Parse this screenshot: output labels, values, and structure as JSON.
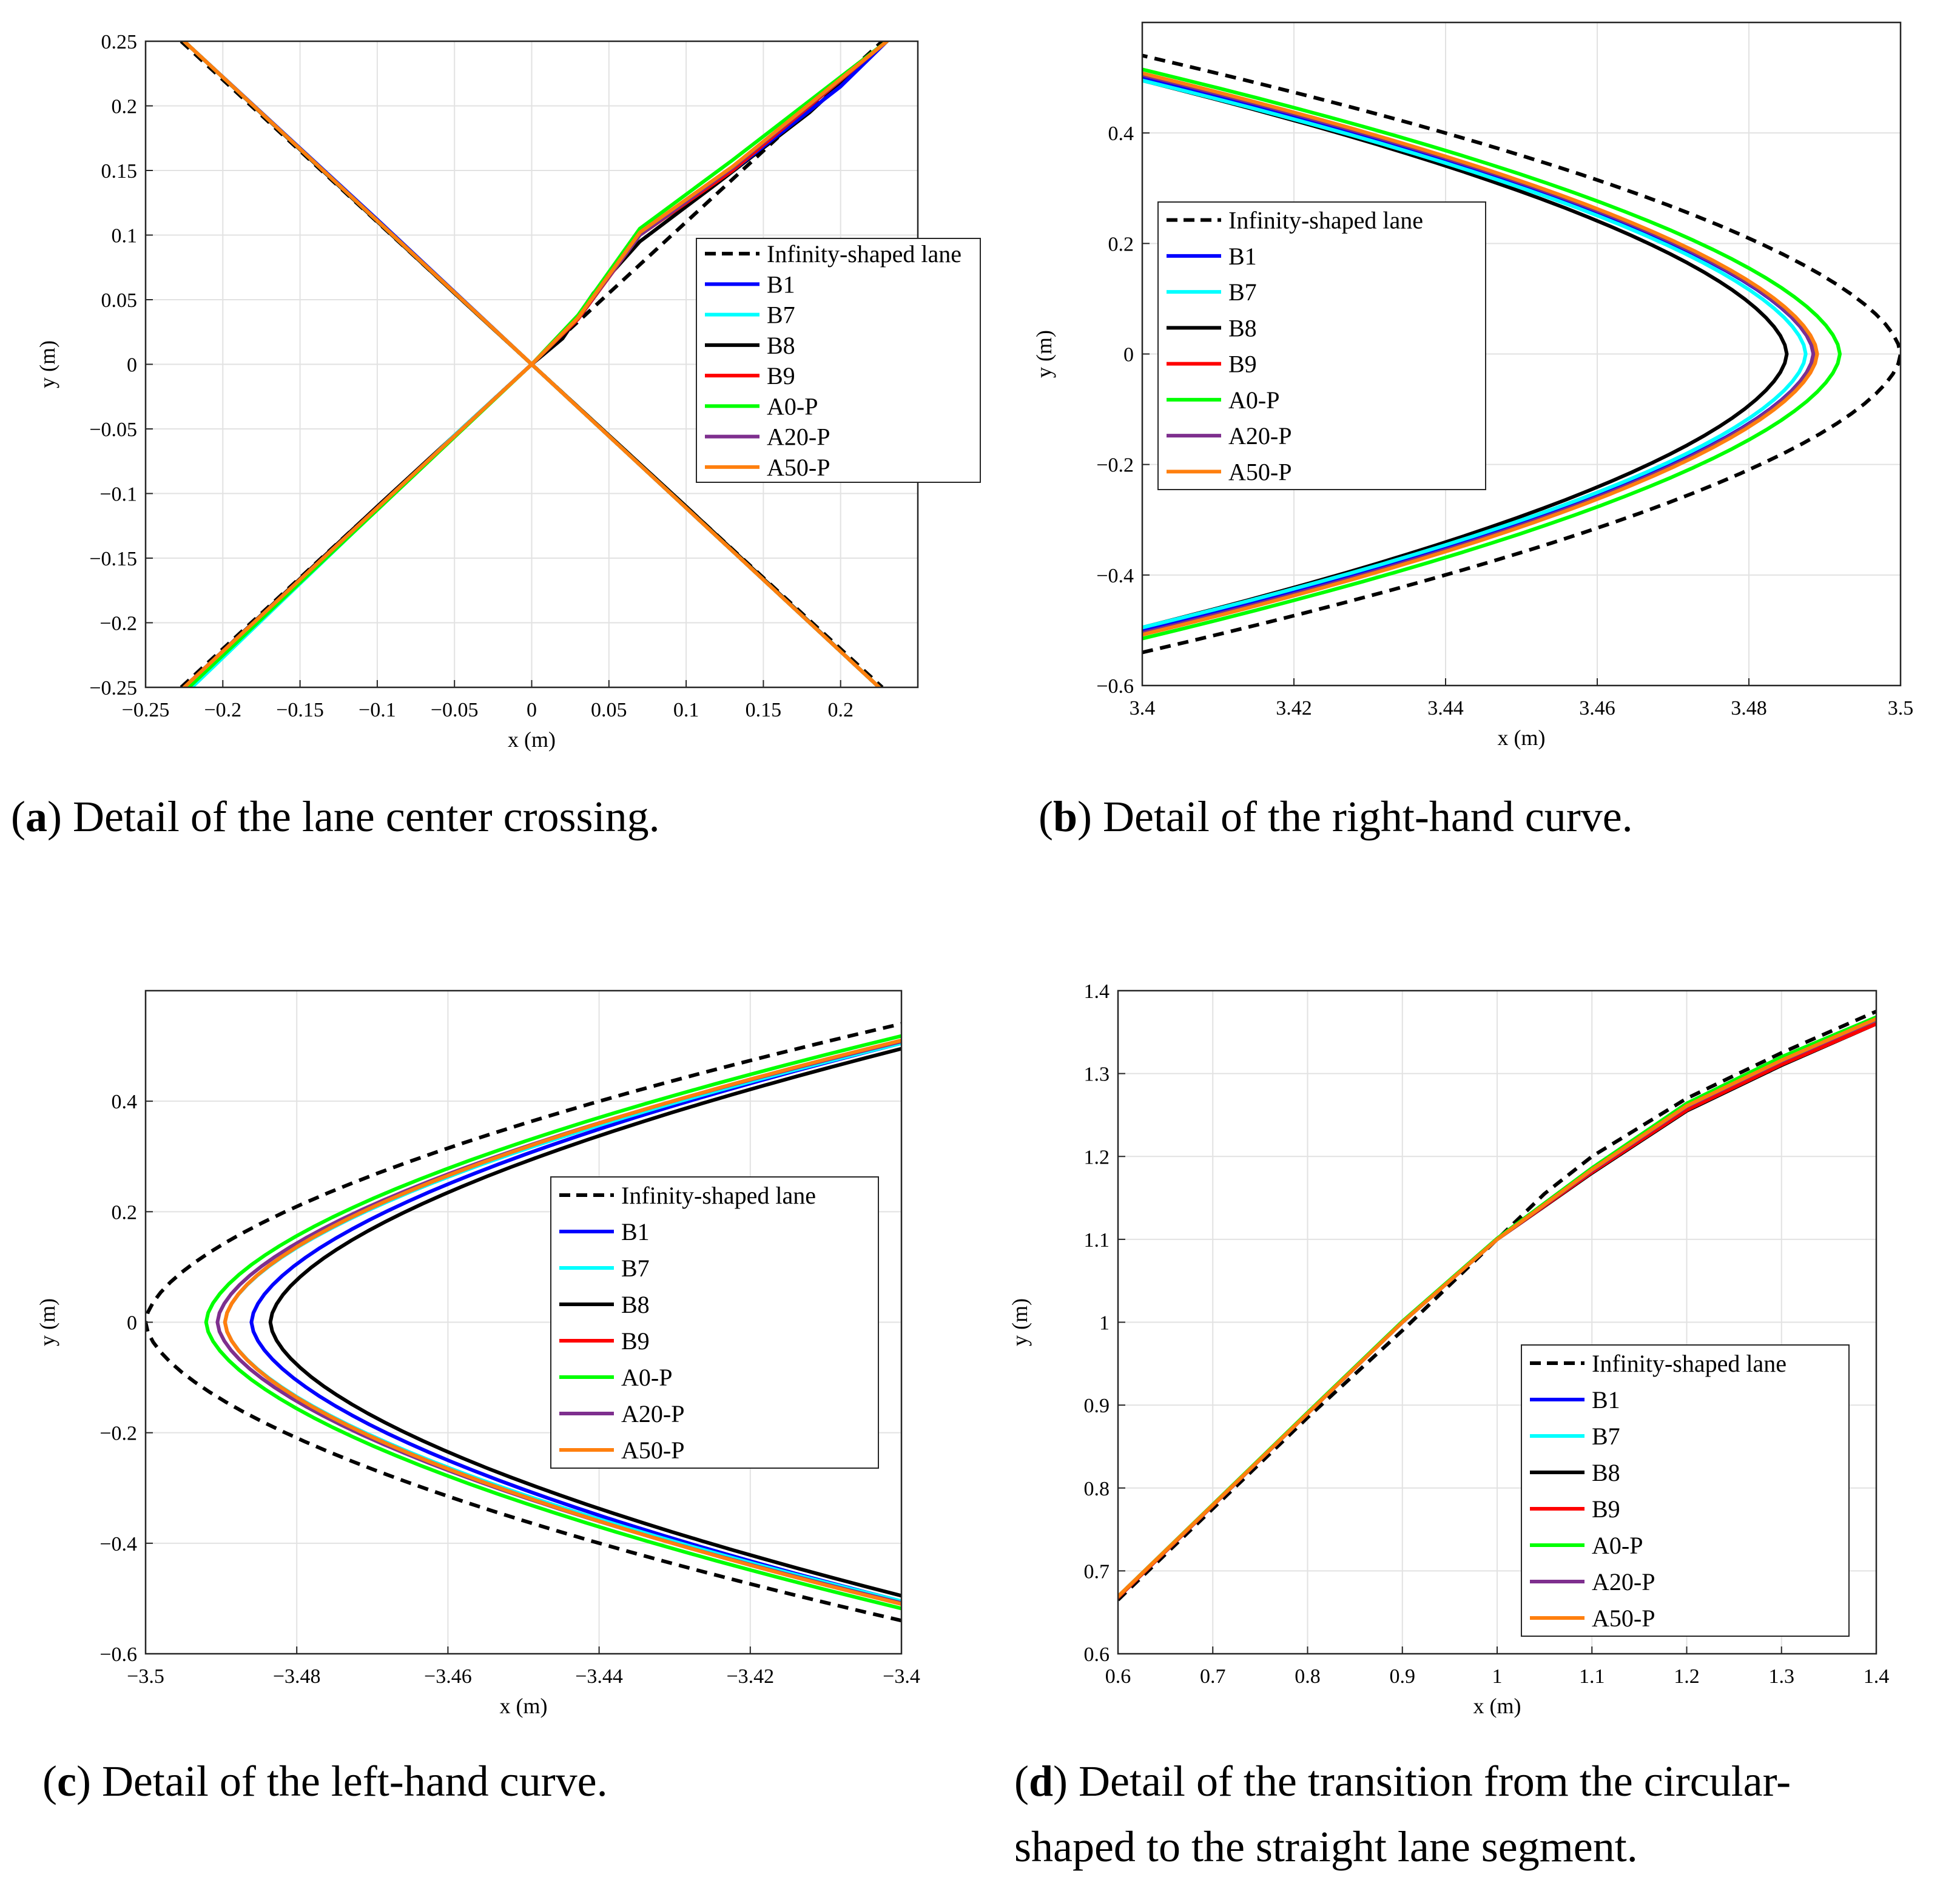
{
  "figure": {
    "series": [
      {
        "key": "lane",
        "name": "Infinity-shaped lane",
        "color": "#000000",
        "dashed": true
      },
      {
        "key": "B1",
        "name": "B1",
        "color": "#0000ff",
        "dashed": false
      },
      {
        "key": "B7",
        "name": "B7",
        "color": "#00ffff",
        "dashed": false
      },
      {
        "key": "B8",
        "name": "B8",
        "color": "#000000",
        "dashed": false
      },
      {
        "key": "B9",
        "name": "B9",
        "color": "#ff0000",
        "dashed": false
      },
      {
        "key": "A0P",
        "name": "A0-P",
        "color": "#00ff00",
        "dashed": false
      },
      {
        "key": "A20P",
        "name": "A20-P",
        "color": "#7e2f8e",
        "dashed": false
      },
      {
        "key": "A50P",
        "name": "A50-P",
        "color": "#ff7f0e",
        "dashed": false
      }
    ]
  },
  "chart_data": [
    {
      "id": "a",
      "type": "line",
      "caption_letter": "a",
      "caption_text": "Detail of the lane center crossing.",
      "xlabel": "x (m)",
      "ylabel": "y (m)",
      "xlim": [
        -0.25,
        0.25
      ],
      "ylim": [
        -0.25,
        0.25
      ],
      "xticks": [
        -0.25,
        -0.2,
        -0.15,
        -0.1,
        -0.05,
        0,
        0.05,
        0.1,
        0.15,
        0.2
      ],
      "xtick_labels": [
        "−0.25",
        "−0.2",
        "−0.15",
        "−0.1",
        "−0.05",
        "0",
        "0.05",
        "0.1",
        "0.15",
        "0.2"
      ],
      "yticks": [
        -0.25,
        -0.2,
        -0.15,
        -0.1,
        -0.05,
        0,
        0.05,
        0.1,
        0.15,
        0.2,
        0.25
      ],
      "ytick_labels": [
        "−0.25",
        "−0.2",
        "−0.15",
        "−0.1",
        "−0.05",
        "0",
        "0.05",
        "0.1",
        "0.15",
        "0.2",
        "0.25"
      ],
      "grid": true,
      "legend_position": "upper-right",
      "series": [
        {
          "key": "lane",
          "paths": [
            [
              [
                -0.227,
                0.25
              ],
              [
                0,
                0
              ],
              [
                0.227,
                -0.25
              ]
            ],
            [
              [
                -0.227,
                -0.25
              ],
              [
                0,
                0
              ],
              [
                0.227,
                0.25
              ]
            ]
          ]
        },
        {
          "key": "B8",
          "paths": [
            [
              [
                -0.225,
                0.25
              ],
              [
                -0.14,
                0.155
              ],
              [
                -0.05,
                0.055
              ],
              [
                0,
                0
              ],
              [
                0.1,
                -0.11
              ],
              [
                0.225,
                -0.25
              ]
            ],
            [
              [
                -0.225,
                -0.25
              ],
              [
                -0.1,
                -0.11
              ],
              [
                0,
                0
              ],
              [
                0.02,
                0.02
              ],
              [
                0.04,
                0.055
              ],
              [
                0.07,
                0.095
              ],
              [
                0.12,
                0.14
              ],
              [
                0.18,
                0.195
              ],
              [
                0.23,
                0.25
              ]
            ]
          ]
        },
        {
          "key": "B1",
          "paths": [
            [
              [
                -0.225,
                0.25
              ],
              [
                -0.1,
                0.112
              ],
              [
                0,
                0
              ],
              [
                0.225,
                -0.25
              ]
            ],
            [
              [
                -0.225,
                -0.25
              ],
              [
                0,
                0
              ],
              [
                0.03,
                0.035
              ],
              [
                0.07,
                0.1
              ],
              [
                0.13,
                0.15
              ],
              [
                0.2,
                0.215
              ],
              [
                0.23,
                0.25
              ]
            ]
          ]
        },
        {
          "key": "B7",
          "paths": [
            [
              [
                -0.225,
                0.25
              ],
              [
                0,
                0
              ],
              [
                0.225,
                -0.25
              ]
            ],
            [
              [
                -0.22,
                -0.25
              ],
              [
                -0.05,
                -0.055
              ],
              [
                0,
                0
              ],
              [
                0.03,
                0.035
              ],
              [
                0.07,
                0.1
              ],
              [
                0.13,
                0.15
              ],
              [
                0.23,
                0.25
              ]
            ]
          ]
        },
        {
          "key": "B9",
          "paths": [
            [
              [
                -0.225,
                0.25
              ],
              [
                0,
                0
              ],
              [
                0.225,
                -0.25
              ]
            ],
            [
              [
                -0.225,
                -0.25
              ],
              [
                0,
                0
              ],
              [
                0.03,
                0.035
              ],
              [
                0.07,
                0.1
              ],
              [
                0.13,
                0.15
              ],
              [
                0.23,
                0.25
              ]
            ]
          ]
        },
        {
          "key": "A20P",
          "paths": [
            [
              [
                -0.225,
                0.25
              ],
              [
                0,
                0
              ],
              [
                0.225,
                -0.25
              ]
            ],
            [
              [
                -0.225,
                -0.25
              ],
              [
                0,
                0
              ],
              [
                0.03,
                0.036
              ],
              [
                0.07,
                0.1
              ],
              [
                0.13,
                0.152
              ],
              [
                0.23,
                0.25
              ]
            ]
          ]
        },
        {
          "key": "A0P",
          "paths": [
            [
              [
                -0.225,
                0.25
              ],
              [
                0,
                0
              ],
              [
                0.225,
                -0.25
              ]
            ],
            [
              [
                -0.222,
                -0.25
              ],
              [
                0,
                0
              ],
              [
                0.03,
                0.038
              ],
              [
                0.07,
                0.105
              ],
              [
                0.13,
                0.158
              ],
              [
                0.23,
                0.25
              ]
            ]
          ]
        },
        {
          "key": "A50P",
          "paths": [
            [
              [
                -0.225,
                0.25
              ],
              [
                0,
                0
              ],
              [
                0.225,
                -0.25
              ]
            ],
            [
              [
                -0.225,
                -0.25
              ],
              [
                0,
                0
              ],
              [
                0.03,
                0.036
              ],
              [
                0.07,
                0.102
              ],
              [
                0.13,
                0.153
              ],
              [
                0.23,
                0.25
              ]
            ]
          ]
        }
      ]
    },
    {
      "id": "b",
      "type": "line",
      "caption_letter": "b",
      "caption_text": "Detail of the right-hand curve.",
      "xlabel": "x (m)",
      "ylabel": "y (m)",
      "xlim": [
        3.4,
        3.5
      ],
      "ylim": [
        -0.6,
        0.6
      ],
      "xticks": [
        3.4,
        3.42,
        3.44,
        3.46,
        3.48,
        3.5
      ],
      "xtick_labels": [
        "3.4",
        "3.42",
        "3.44",
        "3.46",
        "3.48",
        "3.5"
      ],
      "yticks": [
        -0.6,
        -0.4,
        -0.2,
        0,
        0.2,
        0.4
      ],
      "ytick_labels": [
        "−0.6",
        "−0.4",
        "−0.2",
        "0",
        "0.2",
        "0.4"
      ],
      "grid": true,
      "legend_position": "middle-left",
      "curve_model": {
        "lane": {
          "tip": 3.5,
          "half": 0.54
        },
        "B1": {
          "tip": 3.4885,
          "half": 0.5
        },
        "B7": {
          "tip": 3.4875,
          "half": 0.495
        },
        "B8": {
          "tip": 3.485,
          "half": 0.495
        },
        "B9": {
          "tip": 3.489,
          "half": 0.505
        },
        "A0P": {
          "tip": 3.492,
          "half": 0.515
        },
        "A20P": {
          "tip": 3.4885,
          "half": 0.505
        },
        "A50P": {
          "tip": 3.489,
          "half": 0.508
        }
      }
    },
    {
      "id": "c",
      "type": "line",
      "caption_letter": "c",
      "caption_text": "Detail of the left-hand curve.",
      "xlabel": "x (m)",
      "ylabel": "y (m)",
      "xlim": [
        -3.5,
        -3.4
      ],
      "ylim": [
        -0.6,
        0.6
      ],
      "xticks": [
        -3.5,
        -3.48,
        -3.46,
        -3.44,
        -3.42,
        -3.4
      ],
      "xtick_labels": [
        "−3.5",
        "−3.48",
        "−3.46",
        "−3.44",
        "−3.42",
        "−3.4"
      ],
      "yticks": [
        -0.6,
        -0.4,
        -0.2,
        0,
        0.2,
        0.4
      ],
      "ytick_labels": [
        "−0.6",
        "−0.4",
        "−0.2",
        "0",
        "0.2",
        "0.4"
      ],
      "grid": true,
      "legend_position": "right",
      "curve_model": {
        "lane": {
          "tip": -3.5,
          "half": 0.54
        },
        "B1": {
          "tip": -3.486,
          "half": 0.505
        },
        "B7": {
          "tip": -3.4895,
          "half": 0.505
        },
        "B8": {
          "tip": -3.4835,
          "half": 0.495
        },
        "B9": {
          "tip": -3.4895,
          "half": 0.51
        },
        "A0P": {
          "tip": -3.492,
          "half": 0.518
        },
        "A20P": {
          "tip": -3.4905,
          "half": 0.508
        },
        "A50P": {
          "tip": -3.4895,
          "half": 0.51
        }
      }
    },
    {
      "id": "d",
      "type": "line",
      "caption_letter": "d",
      "caption_text": "Detail of the transition from the circular-",
      "caption_text_2": "shaped to the straight lane segment.",
      "xlabel": "x (m)",
      "ylabel": "y (m)",
      "xlim": [
        0.6,
        1.4
      ],
      "ylim": [
        0.6,
        1.4
      ],
      "xticks": [
        0.6,
        0.7,
        0.8,
        0.9,
        1,
        1.1,
        1.2,
        1.3,
        1.4
      ],
      "xtick_labels": [
        "0.6",
        "0.7",
        "0.8",
        "0.9",
        "1",
        "1.1",
        "1.2",
        "1.3",
        "1.4"
      ],
      "yticks": [
        0.6,
        0.7,
        0.8,
        0.9,
        1,
        1.1,
        1.2,
        1.3,
        1.4
      ],
      "ytick_labels": [
        "0.6",
        "0.7",
        "0.8",
        "0.9",
        "1",
        "1.1",
        "1.2",
        "1.3",
        "1.4"
      ],
      "grid": true,
      "legend_position": "lower-right",
      "series": [
        {
          "key": "lane",
          "paths": [
            [
              [
                0.6,
                0.665
              ],
              [
                0.8,
                0.885
              ],
              [
                0.9,
                0.99
              ],
              [
                1.0,
                1.1
              ],
              [
                1.05,
                1.155
              ],
              [
                1.1,
                1.2
              ],
              [
                1.2,
                1.27
              ],
              [
                1.3,
                1.325
              ],
              [
                1.4,
                1.375
              ]
            ]
          ]
        },
        {
          "key": "B8",
          "paths": [
            [
              [
                0.6,
                0.668
              ],
              [
                0.8,
                0.89
              ],
              [
                0.9,
                1.0
              ],
              [
                1.0,
                1.1
              ],
              [
                1.1,
                1.18
              ],
              [
                1.2,
                1.255
              ],
              [
                1.3,
                1.31
              ],
              [
                1.4,
                1.36
              ]
            ]
          ]
        },
        {
          "key": "B1",
          "paths": [
            [
              [
                0.6,
                0.668
              ],
              [
                0.8,
                0.89
              ],
              [
                0.9,
                1.0
              ],
              [
                1.0,
                1.1
              ],
              [
                1.1,
                1.182
              ],
              [
                1.2,
                1.258
              ],
              [
                1.3,
                1.312
              ],
              [
                1.4,
                1.362
              ]
            ]
          ]
        },
        {
          "key": "B7",
          "paths": [
            [
              [
                0.6,
                0.668
              ],
              [
                0.8,
                0.89
              ],
              [
                0.9,
                1.0
              ],
              [
                1.0,
                1.1
              ],
              [
                1.1,
                1.182
              ],
              [
                1.2,
                1.258
              ],
              [
                1.3,
                1.313
              ],
              [
                1.4,
                1.363
              ]
            ]
          ]
        },
        {
          "key": "B9",
          "paths": [
            [
              [
                0.6,
                0.668
              ],
              [
                0.8,
                0.89
              ],
              [
                0.9,
                1.0
              ],
              [
                1.0,
                1.1
              ],
              [
                1.1,
                1.181
              ],
              [
                1.2,
                1.256
              ],
              [
                1.3,
                1.311
              ],
              [
                1.4,
                1.36
              ]
            ]
          ]
        },
        {
          "key": "A20P",
          "paths": [
            [
              [
                0.6,
                0.669
              ],
              [
                0.8,
                0.89
              ],
              [
                0.9,
                1.0
              ],
              [
                1.0,
                1.1
              ],
              [
                1.1,
                1.183
              ],
              [
                1.2,
                1.26
              ],
              [
                1.3,
                1.315
              ],
              [
                1.4,
                1.365
              ]
            ]
          ]
        },
        {
          "key": "A0P",
          "paths": [
            [
              [
                0.6,
                0.669
              ],
              [
                0.8,
                0.891
              ],
              [
                0.9,
                1.001
              ],
              [
                1.0,
                1.101
              ],
              [
                1.1,
                1.186
              ],
              [
                1.2,
                1.264
              ],
              [
                1.3,
                1.32
              ],
              [
                1.4,
                1.368
              ]
            ]
          ]
        },
        {
          "key": "A50P",
          "paths": [
            [
              [
                0.6,
                0.669
              ],
              [
                0.8,
                0.89
              ],
              [
                0.9,
                1.0
              ],
              [
                1.0,
                1.1
              ],
              [
                1.1,
                1.184
              ],
              [
                1.2,
                1.261
              ],
              [
                1.3,
                1.316
              ],
              [
                1.4,
                1.366
              ]
            ]
          ]
        }
      ]
    }
  ]
}
